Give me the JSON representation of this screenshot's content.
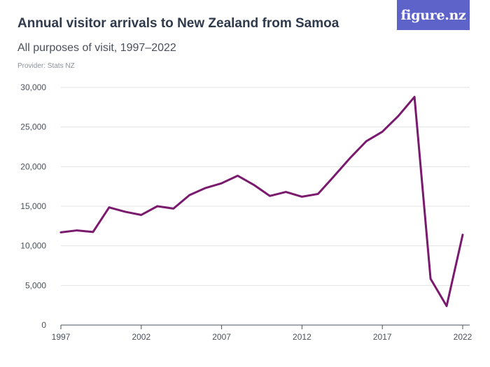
{
  "header": {
    "title": "Annual visitor arrivals to New Zealand from Samoa",
    "subtitle": "All purposes of visit, 1997–2022",
    "provider": "Provider: Stats NZ",
    "logo": "figure.nz"
  },
  "colors": {
    "line": "#7a1a6e",
    "grid": "#e3e3e3",
    "axis": "#4a4f5a",
    "logo_bg": "#5d63c8"
  },
  "chart_data": {
    "type": "line",
    "title": "Annual visitor arrivals to New Zealand from Samoa",
    "subtitle": "All purposes of visit, 1997–2022",
    "xlabel": "",
    "ylabel": "",
    "x": [
      1997,
      1998,
      1999,
      2000,
      2001,
      2002,
      2003,
      2004,
      2005,
      2006,
      2007,
      2008,
      2009,
      2010,
      2011,
      2012,
      2013,
      2014,
      2015,
      2016,
      2017,
      2018,
      2019,
      2020,
      2021,
      2022
    ],
    "series": [
      {
        "values": [
          11700,
          11950,
          11750,
          14850,
          14300,
          13900,
          15000,
          14700,
          16400,
          17300,
          17900,
          18850,
          17700,
          16300,
          16800,
          16200,
          16550,
          18800,
          21100,
          23200,
          24400,
          26400,
          28800,
          5850,
          2400,
          11400
        ]
      }
    ],
    "ylim": [
      0,
      30000
    ],
    "yticks": [
      0,
      5000,
      10000,
      15000,
      20000,
      25000,
      30000
    ],
    "ytick_labels": [
      "0",
      "5,000",
      "10,000",
      "15,000",
      "20,000",
      "25,000",
      "30,000"
    ],
    "xticks": [
      1997,
      2002,
      2007,
      2012,
      2017,
      2022
    ],
    "xtick_labels": [
      "1997",
      "2002",
      "2007",
      "2012",
      "2017",
      "2022"
    ],
    "grid": true
  }
}
